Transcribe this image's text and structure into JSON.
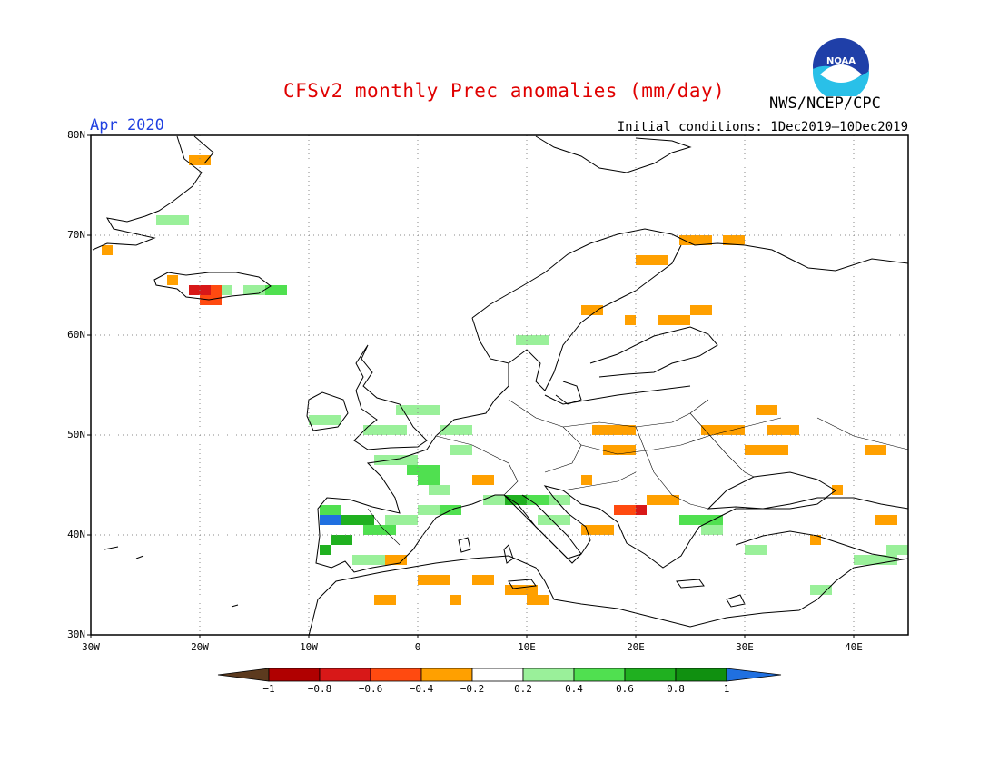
{
  "header": {
    "title": "CFSv2 monthly Prec anomalies (mm/day)",
    "month": "Apr 2020",
    "initial_conditions": "Initial conditions: 1Dec2019—10Dec2019",
    "agency": "NWS/NCEP/CPC",
    "logo_text": "NOAA"
  },
  "axes": {
    "lat_labels": [
      "80N",
      "70N",
      "60N",
      "50N",
      "40N",
      "30N"
    ],
    "lon_labels": [
      "30W",
      "20W",
      "10W",
      "0",
      "10E",
      "20E",
      "30E",
      "40E"
    ]
  },
  "colorbar": {
    "labels": [
      "−1",
      "−0.8",
      "−0.6",
      "−0.4",
      "−0.2",
      "0.2",
      "0.4",
      "0.6",
      "0.8",
      "1"
    ],
    "colors": [
      "#5c3a1e",
      "#b00000",
      "#d81818",
      "#ff4a10",
      "#ffa000",
      "#ffffff",
      "#9af09a",
      "#50e050",
      "#20b020",
      "#109010",
      "#2070e0"
    ]
  },
  "map": {
    "lon_range": [
      -30,
      45
    ],
    "lat_range": [
      30,
      80
    ],
    "anomaly_colors": {
      "dry_mod": "#ffa000",
      "dry_strong": "#ff4a10",
      "dry_vstrong": "#d81818",
      "wet_light": "#9af09a",
      "wet_mod": "#50e050",
      "wet_strong": "#20b020",
      "wet_vstrong": "#109010",
      "wet_max": "#2070e0"
    }
  }
}
